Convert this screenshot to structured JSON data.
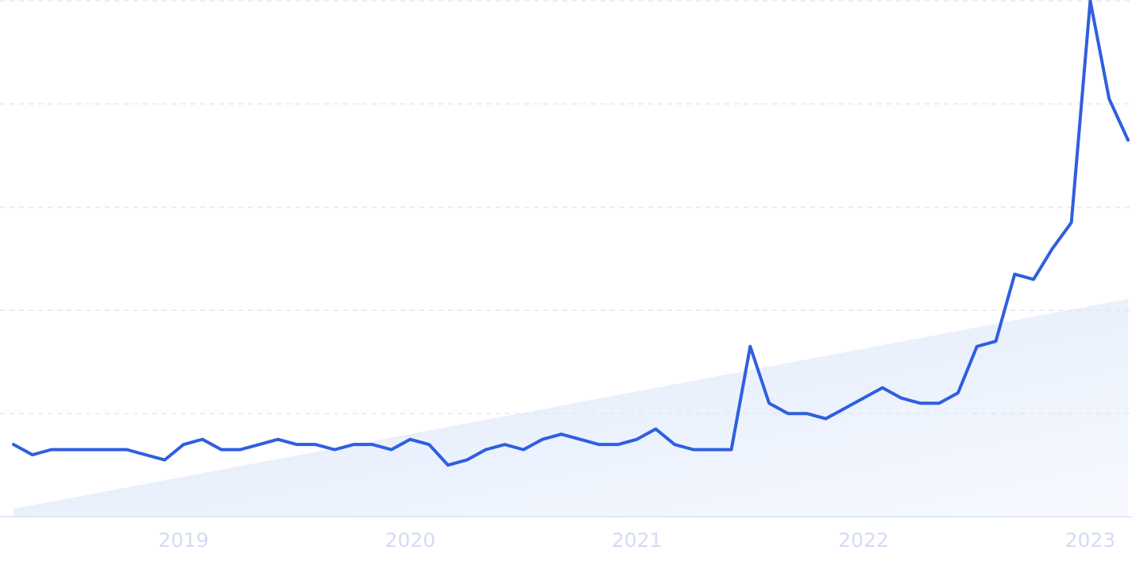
{
  "chart_data": {
    "type": "line",
    "categories": [
      null,
      null,
      null,
      null,
      null,
      null,
      null,
      null,
      null,
      "2019",
      null,
      null,
      null,
      null,
      null,
      null,
      null,
      null,
      null,
      null,
      null,
      "2020",
      null,
      null,
      null,
      null,
      null,
      null,
      null,
      null,
      null,
      null,
      null,
      "2021",
      null,
      null,
      null,
      null,
      null,
      null,
      null,
      null,
      null,
      null,
      null,
      "2022",
      null,
      null,
      null,
      null,
      null,
      null,
      null,
      null,
      null,
      null,
      null,
      "2023",
      null,
      null
    ],
    "values": [
      14,
      12,
      13,
      13,
      13,
      13,
      13,
      12,
      11,
      14,
      15,
      13,
      13,
      14,
      15,
      14,
      14,
      13,
      14,
      14,
      13,
      15,
      14,
      10,
      11,
      13,
      14,
      13,
      15,
      16,
      15,
      14,
      14,
      15,
      17,
      14,
      13,
      13,
      13,
      33,
      22,
      20,
      20,
      19,
      21,
      23,
      25,
      23,
      22,
      22,
      24,
      33,
      34,
      47,
      46,
      52,
      57,
      100,
      81,
      73
    ],
    "color": "#2f5fe0",
    "ylim": [
      0,
      100
    ],
    "yticks": [
      0,
      20,
      40,
      60,
      80,
      100
    ],
    "grid": true
  }
}
